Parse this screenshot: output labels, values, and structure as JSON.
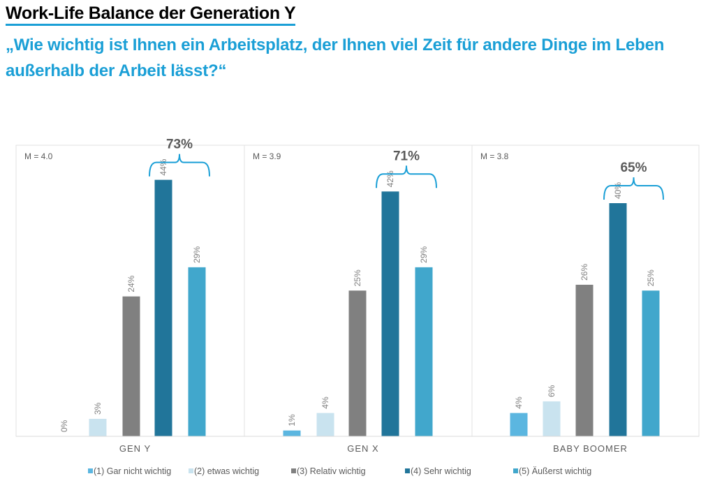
{
  "title": "Work-Life Balance der Generation Y",
  "subtitle": "„Wie wichtig ist Ihnen ein Arbeitsplatz, der Ihnen viel Zeit für andere Dinge im Leben außerhalb der Arbeit lässt?“",
  "chart_data": {
    "type": "bar",
    "categories": [
      "GEN Y",
      "GEN X",
      "BABY BOOMER"
    ],
    "series": [
      {
        "name": "(1) Gar nicht wichtig",
        "color": "#5bb6e0",
        "values": [
          0,
          1,
          4
        ]
      },
      {
        "name": "(2) etwas wichtig",
        "color": "#c9e3ef",
        "values": [
          3,
          4,
          6
        ]
      },
      {
        "name": "(3) Relativ wichtig",
        "color": "#808080",
        "values": [
          24,
          25,
          26
        ]
      },
      {
        "name": "(4) Sehr wichtig",
        "color": "#21759a",
        "values": [
          44,
          42,
          40
        ]
      },
      {
        "name": "(5) Äußerst wichtig",
        "color": "#41a7cc",
        "values": [
          29,
          29,
          25
        ]
      }
    ],
    "means": [
      "M = 4.0",
      "M = 3.9",
      "M = 3.8"
    ],
    "top_box": [
      "73%",
      "71%",
      "65%"
    ],
    "bracket_color": "#1a9fd6",
    "unit": "%",
    "legend": "bottom",
    "grid": false
  }
}
